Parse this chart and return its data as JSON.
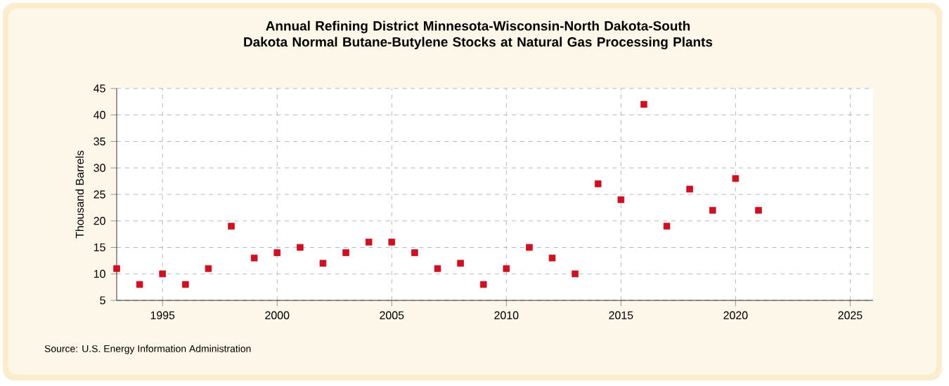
{
  "chart_data": {
    "type": "scatter",
    "title": "Annual Refining District Minnesota-Wisconsin-North Dakota-South Dakota Normal Butane-Butylene Stocks at Natural Gas Processing Plants",
    "ylabel": "Thousand Barrels",
    "annotations": [
      "Source: U.S. Energy Information Administration"
    ],
    "x": [
      1993,
      1994,
      1995,
      1996,
      1997,
      1998,
      1999,
      2000,
      2001,
      2002,
      2003,
      2004,
      2005,
      2006,
      2007,
      2008,
      2009,
      2010,
      2011,
      2012,
      2013,
      2014,
      2015,
      2016,
      2017,
      2018,
      2019,
      2020,
      2021
    ],
    "series": [
      {
        "color": "#cc1122",
        "values": [
          11,
          8,
          10,
          8,
          11,
          19,
          13,
          14,
          15,
          12,
          14,
          16,
          16,
          14,
          11,
          12,
          8,
          11,
          15,
          13,
          10,
          27,
          24,
          42,
          19,
          26,
          22,
          28,
          22
        ]
      }
    ],
    "xlim": [
      1993,
      2026
    ],
    "ylim": [
      5,
      45
    ],
    "xticks": [
      1995,
      2000,
      2005,
      2010,
      2015,
      2020,
      2025
    ],
    "yticks": [
      5,
      10,
      15,
      20,
      25,
      30,
      35,
      40,
      45
    ],
    "grid": true,
    "marker": "square"
  }
}
